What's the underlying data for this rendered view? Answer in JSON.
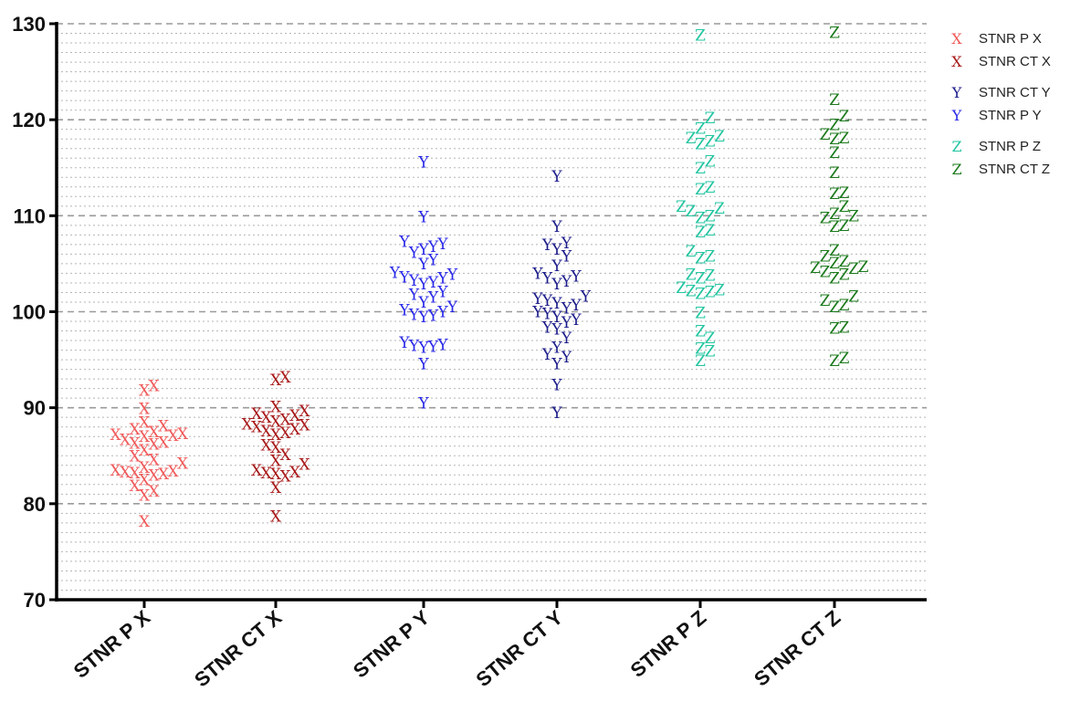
{
  "chart_data": {
    "type": "scatter",
    "title": "",
    "xlabel": "",
    "ylabel": "",
    "ylim": [
      70,
      130
    ],
    "yticks": [
      "70",
      "80",
      "90",
      "100",
      "110",
      "120",
      "130"
    ],
    "grid": {
      "major_every": 10,
      "minor_every": 1,
      "style": "dashed"
    },
    "legend_position": "top-right",
    "categories": [
      "STNR P X",
      "STNR CT X",
      "STNR P Y",
      "STNR CT Y",
      "STNR P Z",
      "STNR CT Z"
    ],
    "series": [
      {
        "name": "STNR P X",
        "marker": "X",
        "color": "#f05a5a",
        "category": 0,
        "values": [
          78.2,
          80.9,
          81.3,
          81.9,
          82.5,
          83.0,
          83.1,
          83.2,
          83.3,
          83.4,
          83.5,
          83.8,
          84.2,
          84.6,
          85.0,
          85.6,
          86.2,
          86.3,
          86.4,
          86.7,
          87.0,
          87.1,
          87.2,
          87.3,
          87.5,
          87.8,
          88.1,
          88.5,
          89.9,
          91.8,
          92.3
        ]
      },
      {
        "name": "STNR CT X",
        "marker": "X",
        "color": "#a81818",
        "category": 1,
        "values": [
          78.7,
          81.7,
          82.9,
          83.1,
          83.2,
          83.3,
          83.5,
          84.1,
          84.5,
          85.1,
          85.9,
          86.1,
          87.2,
          87.4,
          87.6,
          87.8,
          88.0,
          88.2,
          88.3,
          88.6,
          88.8,
          89.0,
          89.2,
          89.4,
          89.7,
          90.1,
          92.9,
          93.2
        ]
      },
      {
        "name": "STNR P Y",
        "marker": "Y",
        "color": "#2727e8",
        "category": 2,
        "values": [
          90.5,
          94.6,
          96.3,
          96.4,
          96.5,
          96.6,
          96.8,
          99.5,
          99.6,
          99.7,
          100.0,
          100.2,
          100.5,
          101.0,
          101.5,
          101.8,
          102.1,
          102.9,
          103.1,
          103.3,
          103.5,
          103.6,
          103.9,
          104.1,
          105.0,
          105.4,
          106.2,
          106.5,
          106.8,
          107.1,
          107.3,
          109.9,
          115.6
        ]
      },
      {
        "name": "STNR CT Y",
        "marker": "Y",
        "color": "#1b1b8a",
        "category": 3,
        "values": [
          89.5,
          92.4,
          94.6,
          95.3,
          95.6,
          96.3,
          97.3,
          98.2,
          98.4,
          98.9,
          99.2,
          99.5,
          99.8,
          100.0,
          100.4,
          100.7,
          100.9,
          101.2,
          101.4,
          101.6,
          102.9,
          103.2,
          103.5,
          103.7,
          104.0,
          104.8,
          105.8,
          106.5,
          107.0,
          107.2,
          108.9,
          114.1
        ]
      },
      {
        "name": "STNR P Z",
        "marker": "Z",
        "color": "#22c5a0",
        "category": 4,
        "values": [
          94.9,
          95.9,
          96.2,
          97.3,
          98.0,
          99.9,
          101.9,
          102.1,
          102.2,
          102.3,
          102.5,
          103.5,
          103.8,
          103.9,
          105.6,
          105.8,
          106.3,
          108.3,
          108.5,
          109.8,
          110.0,
          110.5,
          110.8,
          111.0,
          112.8,
          113.0,
          115.0,
          115.7,
          117.5,
          117.8,
          118.1,
          118.3,
          119.1,
          120.2,
          128.8
        ]
      },
      {
        "name": "STNR CT Z",
        "marker": "Z",
        "color": "#1b7a1b",
        "category": 5,
        "values": [
          94.9,
          95.2,
          98.3,
          98.4,
          100.5,
          100.7,
          101.2,
          101.6,
          103.5,
          103.9,
          104.2,
          104.5,
          104.6,
          104.7,
          105.1,
          105.3,
          105.8,
          106.4,
          108.9,
          109.0,
          109.8,
          110.0,
          110.2,
          111.0,
          112.3,
          112.4,
          114.5,
          116.6,
          118.0,
          118.1,
          118.5,
          119.5,
          120.4,
          122.1,
          129.1
        ]
      }
    ]
  },
  "legend": [
    {
      "label": "STNR P X",
      "marker": "X",
      "color": "#f05a5a"
    },
    {
      "label": "STNR CT X",
      "marker": "X",
      "color": "#a81818"
    },
    {
      "label": "STNR CT Y",
      "marker": "Y",
      "color": "#1b1b8a"
    },
    {
      "label": "STNR P Y",
      "marker": "Y",
      "color": "#2727e8"
    },
    {
      "label": "STNR P Z",
      "marker": "Z",
      "color": "#22c5a0"
    },
    {
      "label": "STNR CT Z",
      "marker": "Z",
      "color": "#1b7a1b"
    }
  ]
}
